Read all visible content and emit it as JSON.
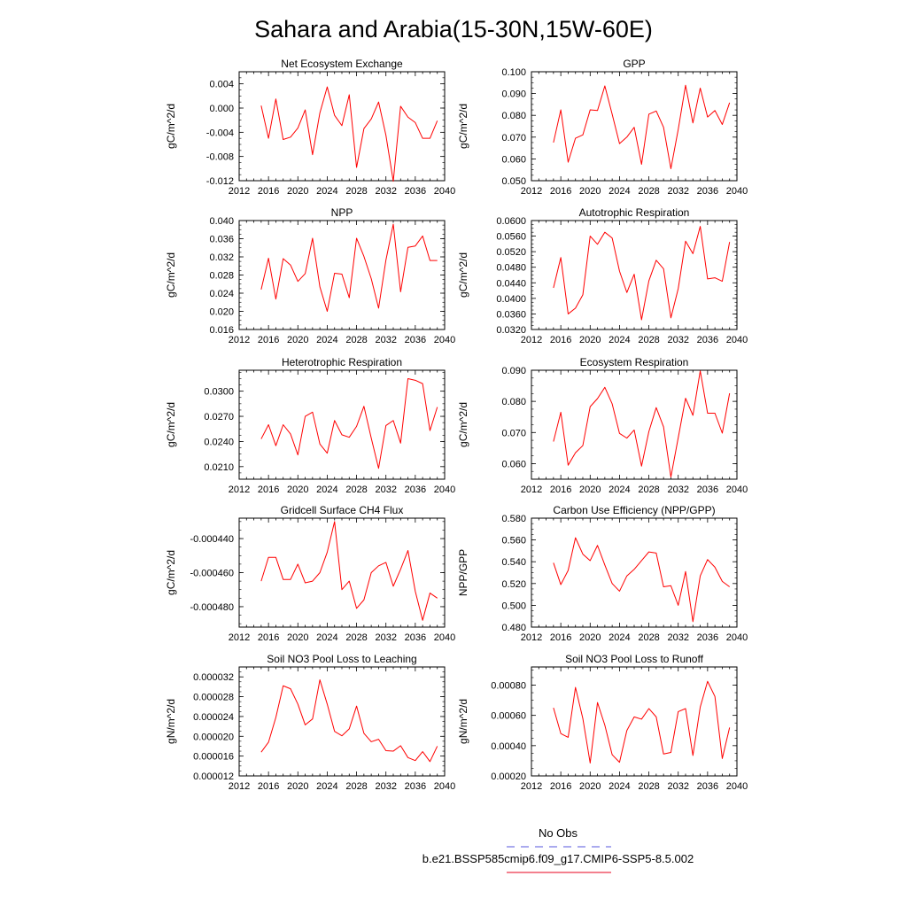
{
  "page": {
    "title": "Sahara and Arabia(15-30N,15W-60E)"
  },
  "legend": {
    "items": [
      {
        "label": "No Obs",
        "color": "#5555dd",
        "style": "dashed"
      },
      {
        "label": "b.e21.BSSP585cmip6.f09_g17.CMIP6-SSP5-8.5.002",
        "color": "#e8001c",
        "style": "solid"
      }
    ]
  },
  "colors": {
    "series": "#ff0000",
    "axis": "#000000"
  },
  "chart_data": [
    {
      "type": "line",
      "title": "Net Ecosystem Exchange",
      "ylabel": "gC/m^2/d",
      "xlim": [
        2012,
        2040
      ],
      "ylim": [
        -0.012,
        0.006
      ],
      "xticks": [
        2012,
        2016,
        2020,
        2024,
        2028,
        2032,
        2036,
        2040
      ],
      "xtick_labels": [
        "2012",
        "2016",
        "2020",
        "2024",
        "2028",
        "2032",
        "2036",
        "2040"
      ],
      "yticks": [
        -0.012,
        -0.008,
        -0.004,
        0.0,
        0.004
      ],
      "ytick_labels": [
        "-0.012",
        "-0.008",
        "-0.004",
        "0.000",
        "0.004"
      ],
      "x": [
        2015,
        2016,
        2017,
        2018,
        2019,
        2020,
        2021,
        2022,
        2023,
        2024,
        2025,
        2026,
        2027,
        2028,
        2029,
        2030,
        2031,
        2032,
        2033,
        2034,
        2035,
        2036,
        2037,
        2038,
        2039
      ],
      "series": [
        {
          "values": [
            0.0004,
            -0.005,
            0.0015,
            -0.0052,
            -0.0048,
            -0.0033,
            -0.0003,
            -0.0077,
            -0.0008,
            0.0035,
            -0.0012,
            -0.0029,
            0.0022,
            -0.0098,
            -0.0034,
            -0.0018,
            0.001,
            -0.0045,
            -0.0121,
            0.0003,
            -0.0015,
            -0.0024,
            -0.005,
            -0.005,
            -0.0021
          ]
        }
      ]
    },
    {
      "type": "line",
      "title": "GPP",
      "ylabel": "gC/m^2/d",
      "xlim": [
        2012,
        2040
      ],
      "ylim": [
        0.05,
        0.1
      ],
      "xticks": [
        2012,
        2016,
        2020,
        2024,
        2028,
        2032,
        2036,
        2040
      ],
      "xtick_labels": [
        "2012",
        "2016",
        "2020",
        "2024",
        "2028",
        "2032",
        "2036",
        "2040"
      ],
      "yticks": [
        0.05,
        0.06,
        0.07,
        0.08,
        0.09,
        0.1
      ],
      "ytick_labels": [
        "0.050",
        "0.060",
        "0.070",
        "0.080",
        "0.090",
        "0.100"
      ],
      "x": [
        2015,
        2016,
        2017,
        2018,
        2019,
        2020,
        2021,
        2022,
        2023,
        2024,
        2025,
        2026,
        2027,
        2028,
        2029,
        2030,
        2031,
        2032,
        2033,
        2034,
        2035,
        2036,
        2037,
        2038,
        2039
      ],
      "series": [
        {
          "values": [
            0.0675,
            0.0825,
            0.0585,
            0.0695,
            0.071,
            0.0825,
            0.0822,
            0.0935,
            0.0805,
            0.067,
            0.07,
            0.0745,
            0.0575,
            0.0805,
            0.082,
            0.0745,
            0.0555,
            0.0735,
            0.0938,
            0.0765,
            0.0925,
            0.0792,
            0.0822,
            0.0758,
            0.0858
          ]
        }
      ]
    },
    {
      "type": "line",
      "title": "NPP",
      "ylabel": "gC/m^2/d",
      "xlim": [
        2012,
        2040
      ],
      "ylim": [
        0.016,
        0.04
      ],
      "xticks": [
        2012,
        2016,
        2020,
        2024,
        2028,
        2032,
        2036,
        2040
      ],
      "xtick_labels": [
        "2012",
        "2016",
        "2020",
        "2024",
        "2028",
        "2032",
        "2036",
        "2040"
      ],
      "yticks": [
        0.016,
        0.02,
        0.024,
        0.028,
        0.032,
        0.036,
        0.04
      ],
      "ytick_labels": [
        "0.016",
        "0.020",
        "0.024",
        "0.028",
        "0.032",
        "0.036",
        "0.040"
      ],
      "x": [
        2015,
        2016,
        2017,
        2018,
        2019,
        2020,
        2021,
        2022,
        2023,
        2024,
        2025,
        2026,
        2027,
        2028,
        2029,
        2030,
        2031,
        2032,
        2033,
        2034,
        2035,
        2036,
        2037,
        2038,
        2039
      ],
      "series": [
        {
          "values": [
            0.0248,
            0.0317,
            0.0227,
            0.0316,
            0.0302,
            0.0266,
            0.0283,
            0.0361,
            0.0254,
            0.02,
            0.0284,
            0.0282,
            0.023,
            0.0361,
            0.0321,
            0.0272,
            0.0207,
            0.0313,
            0.0392,
            0.0243,
            0.0341,
            0.0344,
            0.0366,
            0.0312,
            0.0312
          ]
        }
      ]
    },
    {
      "type": "line",
      "title": "Autotrophic Respiration",
      "ylabel": "gC/m^2/d",
      "xlim": [
        2012,
        2040
      ],
      "ylim": [
        0.032,
        0.06
      ],
      "xticks": [
        2012,
        2016,
        2020,
        2024,
        2028,
        2032,
        2036,
        2040
      ],
      "xtick_labels": [
        "2012",
        "2016",
        "2020",
        "2024",
        "2028",
        "2032",
        "2036",
        "2040"
      ],
      "yticks": [
        0.032,
        0.036,
        0.04,
        0.044,
        0.048,
        0.052,
        0.056,
        0.06
      ],
      "ytick_labels": [
        "0.0320",
        "0.0360",
        "0.0400",
        "0.0440",
        "0.0480",
        "0.0520",
        "0.0560",
        "0.0600"
      ],
      "x": [
        2015,
        2016,
        2017,
        2018,
        2019,
        2020,
        2021,
        2022,
        2023,
        2024,
        2025,
        2026,
        2027,
        2028,
        2029,
        2030,
        2031,
        2032,
        2033,
        2034,
        2035,
        2036,
        2037,
        2038,
        2039
      ],
      "series": [
        {
          "values": [
            0.0427,
            0.0505,
            0.036,
            0.0375,
            0.0409,
            0.056,
            0.0539,
            0.057,
            0.0555,
            0.047,
            0.0415,
            0.0462,
            0.0345,
            0.0445,
            0.0498,
            0.0476,
            0.035,
            0.0425,
            0.0547,
            0.0515,
            0.0585,
            0.045,
            0.0453,
            0.0444,
            0.0545
          ]
        }
      ]
    },
    {
      "type": "line",
      "title": "Heterotrophic Respiration",
      "ylabel": "gC/m^2/d",
      "xlim": [
        2012,
        2040
      ],
      "ylim": [
        0.0195,
        0.0325
      ],
      "xticks": [
        2012,
        2016,
        2020,
        2024,
        2028,
        2032,
        2036,
        2040
      ],
      "xtick_labels": [
        "2012",
        "2016",
        "2020",
        "2024",
        "2028",
        "2032",
        "2036",
        "2040"
      ],
      "yticks": [
        0.021,
        0.024,
        0.027,
        0.03
      ],
      "ytick_labels": [
        "0.0210",
        "0.0240",
        "0.0270",
        "0.0300"
      ],
      "x": [
        2015,
        2016,
        2017,
        2018,
        2019,
        2020,
        2021,
        2022,
        2023,
        2024,
        2025,
        2026,
        2027,
        2028,
        2029,
        2030,
        2031,
        2032,
        2033,
        2034,
        2035,
        2036,
        2037,
        2038,
        2039
      ],
      "series": [
        {
          "values": [
            0.0243,
            0.026,
            0.0235,
            0.026,
            0.0249,
            0.0224,
            0.027,
            0.0275,
            0.0237,
            0.0226,
            0.0265,
            0.0248,
            0.0245,
            0.0258,
            0.0282,
            0.0244,
            0.0208,
            0.0259,
            0.0265,
            0.0238,
            0.0315,
            0.0313,
            0.0309,
            0.0253,
            0.0281
          ]
        }
      ]
    },
    {
      "type": "line",
      "title": "Ecosystem Respiration",
      "ylabel": "gC/m^2/d",
      "xlim": [
        2012,
        2040
      ],
      "ylim": [
        0.055,
        0.09
      ],
      "xticks": [
        2012,
        2016,
        2020,
        2024,
        2028,
        2032,
        2036,
        2040
      ],
      "xtick_labels": [
        "2012",
        "2016",
        "2020",
        "2024",
        "2028",
        "2032",
        "2036",
        "2040"
      ],
      "yticks": [
        0.06,
        0.07,
        0.08,
        0.09
      ],
      "ytick_labels": [
        "0.060",
        "0.070",
        "0.080",
        "0.090"
      ],
      "x": [
        2015,
        2016,
        2017,
        2018,
        2019,
        2020,
        2021,
        2022,
        2023,
        2024,
        2025,
        2026,
        2027,
        2028,
        2029,
        2030,
        2031,
        2032,
        2033,
        2034,
        2035,
        2036,
        2037,
        2038,
        2039
      ],
      "series": [
        {
          "values": [
            0.0671,
            0.0765,
            0.0595,
            0.0635,
            0.0658,
            0.0783,
            0.0809,
            0.0845,
            0.0792,
            0.0697,
            0.0682,
            0.0708,
            0.0592,
            0.0703,
            0.078,
            0.0718,
            0.0557,
            0.0683,
            0.081,
            0.0755,
            0.0898,
            0.0762,
            0.0762,
            0.0698,
            0.0826
          ]
        }
      ]
    },
    {
      "type": "line",
      "title": "Gridcell Surface CH4 Flux",
      "ylabel": "gC/m^2/d",
      "xlim": [
        2012,
        2040
      ],
      "ylim": [
        -0.000492,
        -0.000428
      ],
      "xticks": [
        2012,
        2016,
        2020,
        2024,
        2028,
        2032,
        2036,
        2040
      ],
      "xtick_labels": [
        "2012",
        "2016",
        "2020",
        "2024",
        "2028",
        "2032",
        "2036",
        "2040"
      ],
      "yticks": [
        -0.00048,
        -0.00046,
        -0.00044
      ],
      "ytick_labels": [
        "-0.000480",
        "-0.000460",
        "-0.000440"
      ],
      "x": [
        2015,
        2016,
        2017,
        2018,
        2019,
        2020,
        2021,
        2022,
        2023,
        2024,
        2025,
        2026,
        2027,
        2028,
        2029,
        2030,
        2031,
        2032,
        2033,
        2034,
        2035,
        2036,
        2037,
        2038,
        2039
      ],
      "series": [
        {
          "values": [
            -0.000465,
            -0.000451,
            -0.000451,
            -0.000464,
            -0.000464,
            -0.000455,
            -0.000466,
            -0.000465,
            -0.00046,
            -0.000448,
            -0.00043,
            -0.00047,
            -0.000465,
            -0.000481,
            -0.000476,
            -0.00046,
            -0.000456,
            -0.000454,
            -0.000468,
            -0.000458,
            -0.000447,
            -0.000471,
            -0.000488,
            -0.000472,
            -0.000475
          ]
        }
      ]
    },
    {
      "type": "line",
      "title": "Carbon Use Efficiency (NPP/GPP)",
      "ylabel": "NPP/GPP",
      "xlim": [
        2012,
        2040
      ],
      "ylim": [
        0.48,
        0.58
      ],
      "xticks": [
        2012,
        2016,
        2020,
        2024,
        2028,
        2032,
        2036,
        2040
      ],
      "xtick_labels": [
        "2012",
        "2016",
        "2020",
        "2024",
        "2028",
        "2032",
        "2036",
        "2040"
      ],
      "yticks": [
        0.48,
        0.5,
        0.52,
        0.54,
        0.56,
        0.58
      ],
      "ytick_labels": [
        "0.480",
        "0.500",
        "0.520",
        "0.540",
        "0.560",
        "0.580"
      ],
      "x": [
        2015,
        2016,
        2017,
        2018,
        2019,
        2020,
        2021,
        2022,
        2023,
        2024,
        2025,
        2026,
        2027,
        2028,
        2029,
        2030,
        2031,
        2032,
        2033,
        2034,
        2035,
        2036,
        2037,
        2038,
        2039
      ],
      "series": [
        {
          "values": [
            0.539,
            0.519,
            0.532,
            0.562,
            0.547,
            0.541,
            0.555,
            0.537,
            0.52,
            0.513,
            0.527,
            0.533,
            0.541,
            0.549,
            0.548,
            0.517,
            0.518,
            0.5,
            0.531,
            0.485,
            0.527,
            0.542,
            0.535,
            0.522,
            0.517
          ]
        }
      ]
    },
    {
      "type": "line",
      "title": "Soil NO3 Pool Loss to Leaching",
      "ylabel": "gN/m^2/d",
      "xlim": [
        2012,
        2040
      ],
      "ylim": [
        1.2e-05,
        3.4e-05
      ],
      "xticks": [
        2012,
        2016,
        2020,
        2024,
        2028,
        2032,
        2036,
        2040
      ],
      "xtick_labels": [
        "2012",
        "2016",
        "2020",
        "2024",
        "2028",
        "2032",
        "2036",
        "2040"
      ],
      "yticks": [
        1.2e-05,
        1.6e-05,
        2e-05,
        2.4e-05,
        2.8e-05,
        3.2e-05
      ],
      "ytick_labels": [
        "0.000012",
        "0.000016",
        "0.000020",
        "0.000024",
        "0.000028",
        "0.000032"
      ],
      "x": [
        2015,
        2016,
        2017,
        2018,
        2019,
        2020,
        2021,
        2022,
        2023,
        2024,
        2025,
        2026,
        2027,
        2028,
        2029,
        2030,
        2031,
        2032,
        2033,
        2034,
        2035,
        2036,
        2037,
        2038,
        2039
      ],
      "series": [
        {
          "values": [
            1.68e-05,
            1.88e-05,
            2.38e-05,
            3.02e-05,
            2.96e-05,
            2.65e-05,
            2.23e-05,
            2.35e-05,
            3.14e-05,
            2.65e-05,
            2.1e-05,
            2.01e-05,
            2.15e-05,
            2.61e-05,
            2.06e-05,
            1.89e-05,
            1.94e-05,
            1.71e-05,
            1.7e-05,
            1.81e-05,
            1.57e-05,
            1.51e-05,
            1.69e-05,
            1.49e-05,
            1.8e-05
          ]
        }
      ]
    },
    {
      "type": "line",
      "title": "Soil NO3 Pool Loss to Runoff",
      "ylabel": "gN/m^2/d",
      "xlim": [
        2012,
        2040
      ],
      "ylim": [
        0.0002,
        0.00092
      ],
      "xticks": [
        2012,
        2016,
        2020,
        2024,
        2028,
        2032,
        2036,
        2040
      ],
      "xtick_labels": [
        "2012",
        "2016",
        "2020",
        "2024",
        "2028",
        "2032",
        "2036",
        "2040"
      ],
      "yticks": [
        0.0002,
        0.0004,
        0.0006,
        0.0008
      ],
      "ytick_labels": [
        "0.00020",
        "0.00040",
        "0.00060",
        "0.00080"
      ],
      "x": [
        2015,
        2016,
        2017,
        2018,
        2019,
        2020,
        2021,
        2022,
        2023,
        2024,
        2025,
        2026,
        2027,
        2028,
        2029,
        2030,
        2031,
        2032,
        2033,
        2034,
        2035,
        2036,
        2037,
        2038,
        2039
      ],
      "series": [
        {
          "values": [
            0.00065,
            0.00048,
            0.000455,
            0.000785,
            0.00058,
            0.000285,
            0.000685,
            0.000535,
            0.00034,
            0.00029,
            0.0005,
            0.00059,
            0.000575,
            0.000645,
            0.00059,
            0.000345,
            0.000355,
            0.000625,
            0.000645,
            0.000335,
            0.000655,
            0.000825,
            0.000725,
            0.000315,
            0.00052
          ]
        }
      ]
    }
  ]
}
